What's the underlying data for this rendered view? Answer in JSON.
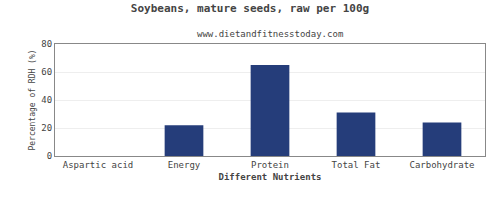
{
  "chart_data": {
    "type": "bar",
    "title": "Soybeans, mature seeds, raw per 100g",
    "subtitle": "www.dietandfitnesstoday.com",
    "xlabel": "Different Nutrients",
    "ylabel": "Percentage of RDH (%)",
    "categories": [
      "Aspartic acid",
      "Energy",
      "Protein",
      "Total Fat",
      "Carbohydrate"
    ],
    "values": [
      0,
      22,
      65,
      31,
      24
    ],
    "color": "#253d7a",
    "ylim": [
      0,
      80
    ],
    "yticks": [
      0,
      20,
      40,
      60,
      80
    ],
    "grid": true
  }
}
